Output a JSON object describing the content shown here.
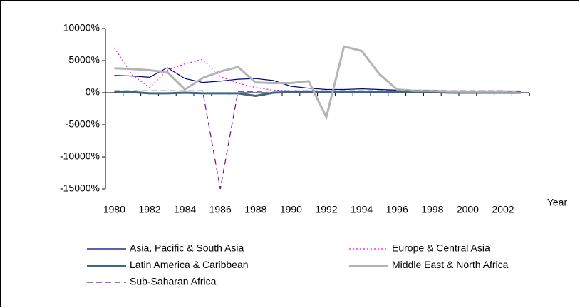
{
  "chart_data": {
    "type": "line",
    "x_label": "Year",
    "categories": [
      "1980",
      null,
      "1982",
      null,
      "1984",
      null,
      "1986",
      null,
      "1988",
      null,
      "1990",
      null,
      "1992",
      null,
      "1994",
      null,
      "1996",
      null,
      "1998",
      null,
      "2000",
      null,
      "2002",
      null
    ],
    "ylim": [
      -15000,
      10000
    ],
    "yticks": [
      {
        "value": -15000,
        "label": "-15000%"
      },
      {
        "value": -10000,
        "label": "-10000%"
      },
      {
        "value": -5000,
        "label": "-5000%"
      },
      {
        "value": 0,
        "label": "0%"
      },
      {
        "value": 5000,
        "label": "5000%"
      },
      {
        "value": 10000,
        "label": "10000%"
      }
    ],
    "grid": false,
    "series": [
      {
        "name": "Asia, Pacific & South Asia",
        "color": "#000080",
        "width": 1.2,
        "dash": "none",
        "values": [
          2700,
          2600,
          2400,
          3900,
          2200,
          1600,
          1800,
          2100,
          2200,
          1900,
          1000,
          700,
          500,
          500,
          600,
          500,
          400,
          300,
          200,
          100,
          100,
          100,
          100,
          0
        ]
      },
      {
        "name": "Europe & Central Asia",
        "color": "#ff00ff",
        "width": 1.2,
        "dash": "2 3",
        "values": [
          7000,
          2800,
          800,
          3500,
          4500,
          5200,
          2500,
          1500,
          800,
          400,
          300,
          300,
          200,
          200,
          200,
          200,
          200,
          200,
          100,
          100,
          100,
          100,
          100,
          0
        ]
      },
      {
        "name": "Latin America & Caribbean",
        "color": "#3a6a80",
        "width": 3,
        "dash": "none",
        "values": [
          200,
          100,
          -100,
          -100,
          0,
          -100,
          -100,
          -100,
          -500,
          0,
          100,
          100,
          100,
          100,
          100,
          100,
          100,
          100,
          100,
          0,
          0,
          0,
          0,
          0
        ]
      },
      {
        "name": "Middle East & North Africa",
        "color": "#b4b4b4",
        "width": 3,
        "dash": "none",
        "values": [
          3800,
          3700,
          3500,
          3200,
          500,
          2300,
          3300,
          4000,
          1600,
          1500,
          1500,
          1800,
          -3800,
          7200,
          6500,
          2900,
          500,
          300,
          300,
          200,
          200,
          200,
          200,
          200
        ]
      },
      {
        "name": "Sub-Saharan Africa",
        "color": "#800080",
        "width": 1.2,
        "dash": "8 5",
        "values": [
          300,
          300,
          300,
          300,
          300,
          300,
          -15000,
          200,
          200,
          300,
          300,
          300,
          300,
          300,
          300,
          300,
          300,
          300,
          300,
          300,
          300,
          300,
          300,
          200
        ]
      }
    ]
  }
}
